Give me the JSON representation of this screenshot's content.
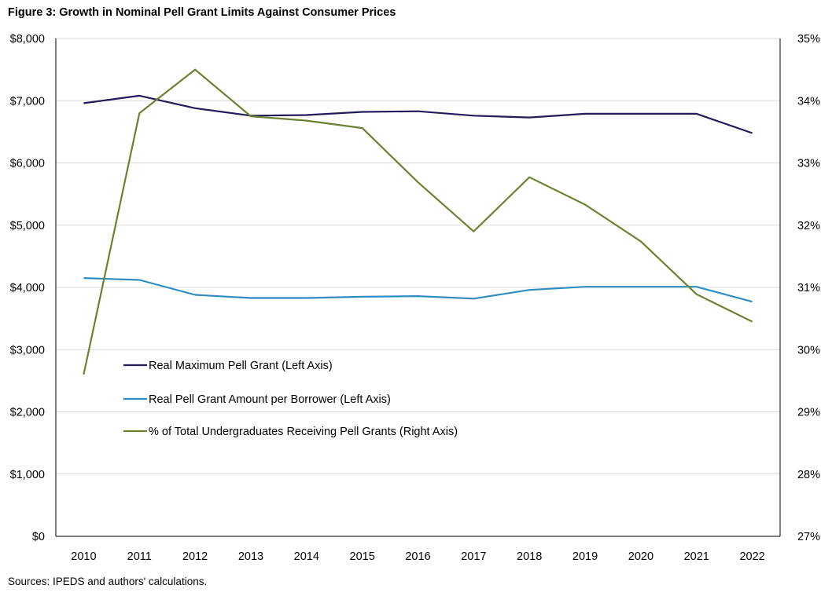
{
  "chart_data": {
    "type": "line",
    "title": "Figure 3: Growth in Nominal Pell Grant Limits Against Consumer Prices",
    "source": "Sources: IPEDS and authors' calculations.",
    "categories": [
      "2010",
      "2011",
      "2012",
      "2013",
      "2014",
      "2015",
      "2016",
      "2017",
      "2018",
      "2019",
      "2020",
      "2021",
      "2022"
    ],
    "left_axis": {
      "ylim": [
        0,
        8000
      ],
      "ticks": [
        0,
        1000,
        2000,
        3000,
        4000,
        5000,
        6000,
        7000,
        8000
      ],
      "tick_labels": [
        "$0",
        "$1,000",
        "$2,000",
        "$3,000",
        "$4,000",
        "$5,000",
        "$6,000",
        "$7,000",
        "$8,000"
      ]
    },
    "right_axis": {
      "ylim": [
        27,
        35
      ],
      "ticks": [
        27,
        28,
        29,
        30,
        31,
        32,
        33,
        34,
        35
      ],
      "tick_labels": [
        "27%",
        "28%",
        "29%",
        "30%",
        "31%",
        "32%",
        "33%",
        "34%",
        "35%"
      ]
    },
    "grid": true,
    "legend_position": "center-left",
    "series": [
      {
        "name": "Real Maximum Pell Grant (Left Axis)",
        "axis": "left",
        "color": "#221c5a",
        "values": [
          6960,
          7080,
          6880,
          6760,
          6770,
          6820,
          6830,
          6760,
          6730,
          6790,
          6790,
          6790,
          6480
        ]
      },
      {
        "name": "Real Pell Grant Amount per Borrower (Left Axis)",
        "axis": "left",
        "color": "#2e8cc0",
        "values": [
          4150,
          4120,
          3880,
          3830,
          3830,
          3850,
          3860,
          3820,
          3960,
          4010,
          4010,
          4010,
          3770
        ]
      },
      {
        "name": "% of Total Undergraduates Receiving Pell Grants (Right Axis)",
        "axis": "right",
        "color": "#6b8233",
        "values": [
          29.6,
          33.8,
          34.5,
          33.75,
          33.68,
          33.56,
          32.69,
          31.9,
          32.77,
          32.33,
          31.74,
          30.89,
          30.45
        ]
      }
    ]
  }
}
